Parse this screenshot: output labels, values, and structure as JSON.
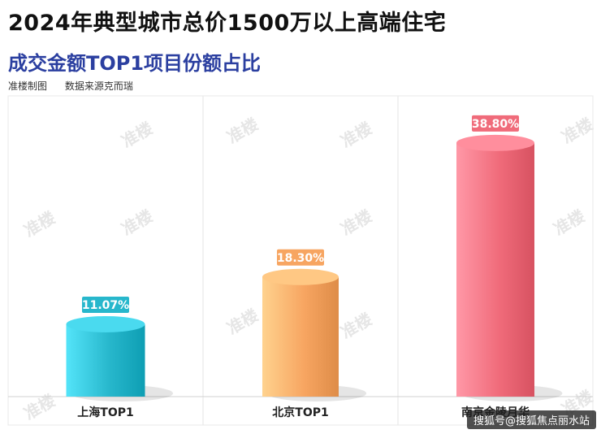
{
  "header": {
    "title": "2024年典型城市总价1500万以上高端住宅",
    "subtitle": "成交金额TOP1项目份额占比",
    "author": "准楼制图",
    "source": "数据来源克而瑞"
  },
  "watermark_text": "准楼",
  "corner_badge": "搜狐号@搜狐焦点丽水站",
  "chart_data": {
    "type": "bar",
    "categories": [
      "上海TOP1",
      "北京TOP1",
      "南京金陵月华"
    ],
    "values": [
      11.07,
      18.3,
      38.8
    ],
    "value_labels": [
      "11.07%",
      "18.30%",
      "38.80%"
    ],
    "ylim": [
      0,
      45
    ],
    "grid": false,
    "legend": "none",
    "colors": [
      "#27b7cc",
      "#f7a561",
      "#f06b7a"
    ]
  }
}
